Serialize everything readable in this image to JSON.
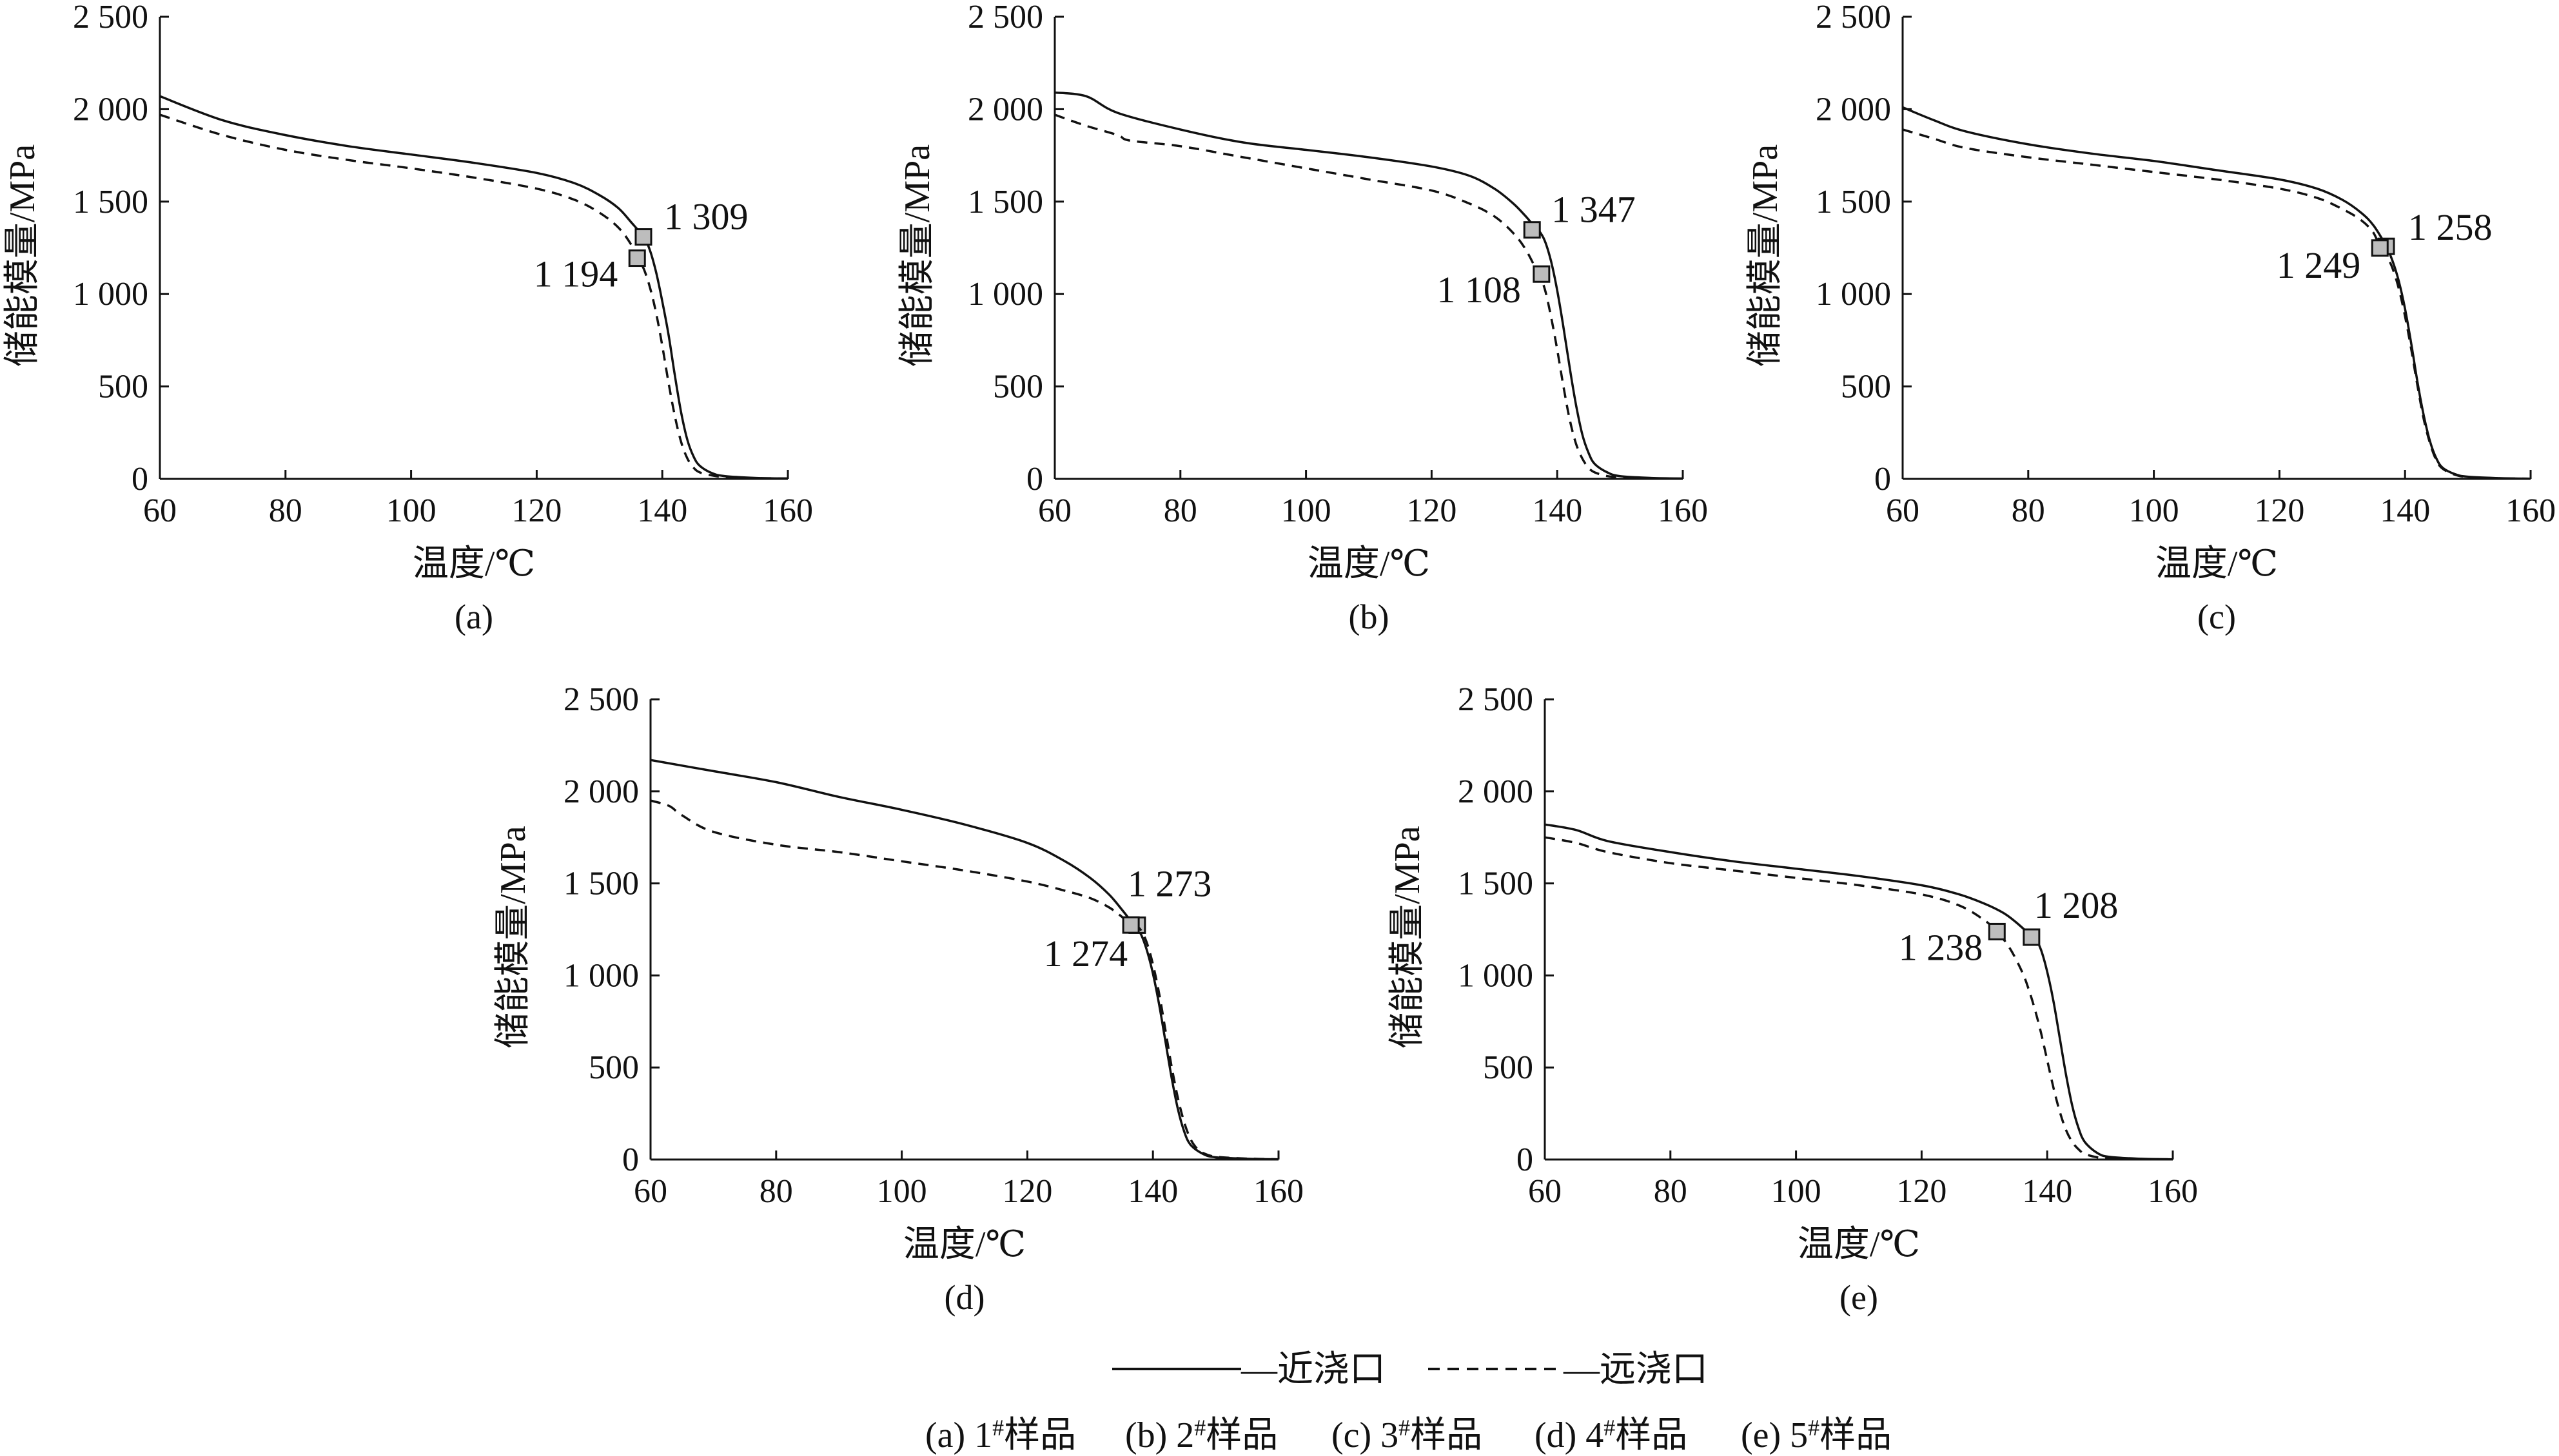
{
  "legend": {
    "near": "—近浇口",
    "far": "—远浇口"
  },
  "caption": [
    {
      "pre": "(a) 1",
      "sup": "#",
      "post": "样品"
    },
    {
      "pre": "(b) 2",
      "sup": "#",
      "post": "样品"
    },
    {
      "pre": "(c) 3",
      "sup": "#",
      "post": "样品"
    },
    {
      "pre": "(d) 4",
      "sup": "#",
      "post": "样品"
    },
    {
      "pre": "(e) 5",
      "sup": "#",
      "post": "样品"
    }
  ],
  "colors": {
    "line": "#111111",
    "marker_fill": "#bdbdbd"
  },
  "chart_data": [
    {
      "type": "line",
      "label": "(a)",
      "xlabel": "温度/℃",
      "ylabel": "储能模量/MPa",
      "xlim": [
        60,
        160
      ],
      "ylim": [
        0,
        2500
      ],
      "xticks": [
        60,
        80,
        100,
        120,
        140,
        160
      ],
      "yticks": [
        0,
        500,
        1000,
        1500,
        2000,
        2500
      ],
      "ytick_labels": [
        "0",
        "500",
        "1 000",
        "1 500",
        "2 000",
        "2 500"
      ],
      "series": [
        {
          "name": "近浇口",
          "style": "solid",
          "x": [
            60,
            70,
            80,
            90,
            100,
            110,
            120,
            126,
            130,
            133,
            135,
            137,
            138,
            139,
            140,
            141,
            142,
            143,
            144,
            145,
            146,
            148,
            150,
            155,
            160
          ],
          "y": [
            2070,
            1940,
            1860,
            1800,
            1755,
            1710,
            1655,
            1600,
            1535,
            1465,
            1390,
            1309,
            1240,
            1120,
            960,
            780,
            560,
            360,
            210,
            120,
            70,
            30,
            15,
            5,
            2
          ],
          "marker": {
            "x": 137,
            "y": 1309,
            "label": "1 309"
          }
        },
        {
          "name": "远浇口",
          "style": "dashed",
          "x": [
            60,
            70,
            80,
            90,
            100,
            110,
            120,
            126,
            130,
            133,
            135,
            136,
            137,
            138,
            139,
            140,
            141,
            142,
            143,
            144,
            145,
            146,
            148,
            150,
            155,
            160
          ],
          "y": [
            1970,
            1860,
            1780,
            1725,
            1680,
            1630,
            1570,
            1510,
            1440,
            1360,
            1270,
            1194,
            1140,
            1040,
            900,
            720,
            520,
            340,
            200,
            110,
            60,
            35,
            18,
            10,
            4,
            2
          ],
          "marker": {
            "x": 136,
            "y": 1194,
            "label": "1 194"
          }
        }
      ]
    },
    {
      "type": "line",
      "label": "(b)",
      "xlabel": "温度/℃",
      "ylabel": "储能模量/MPa",
      "xlim": [
        60,
        160
      ],
      "ylim": [
        0,
        2500
      ],
      "xticks": [
        60,
        80,
        100,
        120,
        140,
        160
      ],
      "yticks": [
        0,
        500,
        1000,
        1500,
        2000,
        2500
      ],
      "ytick_labels": [
        "0",
        "500",
        "1 000",
        "1 500",
        "2 000",
        "2 500"
      ],
      "series": [
        {
          "name": "近浇口",
          "style": "solid",
          "x": [
            60,
            65,
            70,
            80,
            90,
            100,
            110,
            120,
            126,
            130,
            133,
            135,
            136,
            137,
            138,
            139,
            140,
            141,
            142,
            143,
            144,
            145,
            146,
            148,
            150,
            155,
            160
          ],
          "y": [
            2090,
            2070,
            1980,
            1890,
            1820,
            1780,
            1740,
            1690,
            1640,
            1570,
            1490,
            1420,
            1380,
            1347,
            1290,
            1180,
            1020,
            820,
            600,
            400,
            240,
            140,
            80,
            35,
            15,
            5,
            2
          ],
          "marker": {
            "x": 136,
            "y": 1347,
            "label": "1 347"
          }
        },
        {
          "name": "远浇口",
          "style": "dashed",
          "x": [
            60,
            65,
            70,
            72,
            80,
            90,
            100,
            110,
            120,
            126,
            130,
            133,
            135,
            137,
            138,
            139,
            140,
            141,
            142,
            143,
            144,
            145,
            146,
            148,
            150,
            155,
            160
          ],
          "y": [
            1970,
            1910,
            1860,
            1830,
            1800,
            1740,
            1680,
            1620,
            1560,
            1490,
            1420,
            1330,
            1240,
            1108,
            1030,
            880,
            700,
            500,
            320,
            190,
            110,
            60,
            35,
            15,
            8,
            3,
            1
          ],
          "marker": {
            "x": 137.5,
            "y": 1108,
            "label": "1 108"
          }
        }
      ]
    },
    {
      "type": "line",
      "label": "(c)",
      "xlabel": "温度/℃",
      "ylabel": "储能模量/MPa",
      "xlim": [
        60,
        160
      ],
      "ylim": [
        0,
        2500
      ],
      "xticks": [
        60,
        80,
        100,
        120,
        140,
        160
      ],
      "yticks": [
        0,
        500,
        1000,
        1500,
        2000,
        2500
      ],
      "ytick_labels": [
        "0",
        "500",
        "1 000",
        "1 500",
        "2 000",
        "2 500"
      ],
      "series": [
        {
          "name": "近浇口",
          "style": "solid",
          "x": [
            60,
            65,
            70,
            80,
            90,
            100,
            110,
            120,
            126,
            130,
            133,
            135,
            137,
            138,
            139,
            140,
            141,
            142,
            143,
            144,
            145,
            146,
            148,
            150,
            155,
            160
          ],
          "y": [
            2010,
            1940,
            1880,
            1810,
            1760,
            1720,
            1670,
            1620,
            1570,
            1510,
            1440,
            1370,
            1258,
            1180,
            1070,
            920,
            730,
            520,
            340,
            200,
            110,
            60,
            25,
            12,
            4,
            1
          ],
          "marker": {
            "x": 137,
            "y": 1258,
            "label": "1 258"
          }
        },
        {
          "name": "远浇口",
          "style": "dashed",
          "x": [
            60,
            65,
            70,
            80,
            90,
            100,
            110,
            120,
            126,
            130,
            133,
            135,
            136,
            137,
            138,
            139,
            140,
            141,
            142,
            143,
            144,
            145,
            146,
            148,
            150,
            155,
            160
          ],
          "y": [
            1890,
            1840,
            1790,
            1740,
            1700,
            1660,
            1620,
            1570,
            1520,
            1460,
            1400,
            1330,
            1249,
            1210,
            1140,
            1030,
            880,
            700,
            500,
            320,
            190,
            100,
            55,
            22,
            10,
            3,
            1
          ],
          "marker": {
            "x": 136,
            "y": 1249,
            "label": "1 249"
          }
        }
      ]
    },
    {
      "type": "line",
      "label": "(d)",
      "xlabel": "温度/℃",
      "ylabel": "储能模量/MPa",
      "xlim": [
        60,
        160
      ],
      "ylim": [
        0,
        2500
      ],
      "xticks": [
        60,
        80,
        100,
        120,
        140,
        160
      ],
      "yticks": [
        0,
        500,
        1000,
        1500,
        2000,
        2500
      ],
      "ytick_labels": [
        "0",
        "500",
        "1 000",
        "1 500",
        "2 000",
        "2 500"
      ],
      "series": [
        {
          "name": "近浇口",
          "style": "solid",
          "x": [
            60,
            70,
            80,
            90,
            100,
            110,
            120,
            126,
            130,
            133,
            135,
            137,
            138,
            139,
            140,
            141,
            142,
            143,
            144,
            145,
            146,
            148,
            150,
            155,
            160
          ],
          "y": [
            2170,
            2110,
            2050,
            1970,
            1900,
            1820,
            1720,
            1620,
            1530,
            1440,
            1360,
            1273,
            1230,
            1140,
            1010,
            840,
            640,
            440,
            270,
            150,
            80,
            30,
            12,
            4,
            1
          ],
          "marker": {
            "x": 137.5,
            "y": 1273,
            "label": "1 273"
          }
        },
        {
          "name": "远浇口",
          "style": "dashed",
          "x": [
            60,
            63,
            65,
            70,
            80,
            90,
            100,
            110,
            120,
            126,
            130,
            133,
            135,
            136,
            137,
            138,
            139,
            140,
            141,
            142,
            143,
            144,
            145,
            146,
            147,
            148,
            150,
            155,
            160
          ],
          "y": [
            1950,
            1920,
            1870,
            1780,
            1710,
            1670,
            1620,
            1570,
            1510,
            1460,
            1420,
            1370,
            1320,
            1290,
            1274,
            1250,
            1180,
            1060,
            900,
            700,
            500,
            330,
            200,
            110,
            60,
            35,
            15,
            5,
            1
          ],
          "marker": {
            "x": 136.5,
            "y": 1274,
            "label": "1 274"
          }
        }
      ]
    },
    {
      "type": "line",
      "label": "(e)",
      "xlabel": "温度/℃",
      "ylabel": "储能模量/MPa",
      "xlim": [
        60,
        160
      ],
      "ylim": [
        0,
        2500
      ],
      "xticks": [
        60,
        80,
        100,
        120,
        140,
        160
      ],
      "yticks": [
        0,
        500,
        1000,
        1500,
        2000,
        2500
      ],
      "ytick_labels": [
        "0",
        "500",
        "1 000",
        "1 500",
        "2 000",
        "2 500"
      ],
      "series": [
        {
          "name": "近浇口",
          "style": "solid",
          "x": [
            60,
            65,
            70,
            80,
            90,
            100,
            110,
            120,
            126,
            130,
            133,
            135,
            137,
            138,
            139,
            140,
            141,
            142,
            143,
            144,
            145,
            146,
            148,
            150,
            155,
            160
          ],
          "y": [
            1820,
            1790,
            1730,
            1670,
            1620,
            1580,
            1540,
            1490,
            1440,
            1390,
            1340,
            1290,
            1230,
            1208,
            1140,
            1020,
            860,
            660,
            460,
            290,
            170,
            95,
            35,
            14,
            4,
            1
          ],
          "marker": {
            "x": 137.5,
            "y": 1208,
            "label": "1 208"
          }
        },
        {
          "name": "远浇口",
          "style": "dashed",
          "x": [
            60,
            65,
            70,
            80,
            90,
            100,
            110,
            120,
            126,
            130,
            132,
            134,
            136,
            137,
            138,
            139,
            140,
            141,
            142,
            143,
            144,
            145,
            146,
            148,
            150,
            155,
            160
          ],
          "y": [
            1750,
            1720,
            1670,
            1610,
            1570,
            1530,
            1490,
            1440,
            1380,
            1300,
            1238,
            1150,
            1020,
            930,
            820,
            690,
            540,
            390,
            260,
            160,
            95,
            55,
            30,
            12,
            5,
            2,
            1
          ],
          "marker": {
            "x": 132,
            "y": 1238,
            "label": "1 238"
          }
        }
      ]
    }
  ]
}
